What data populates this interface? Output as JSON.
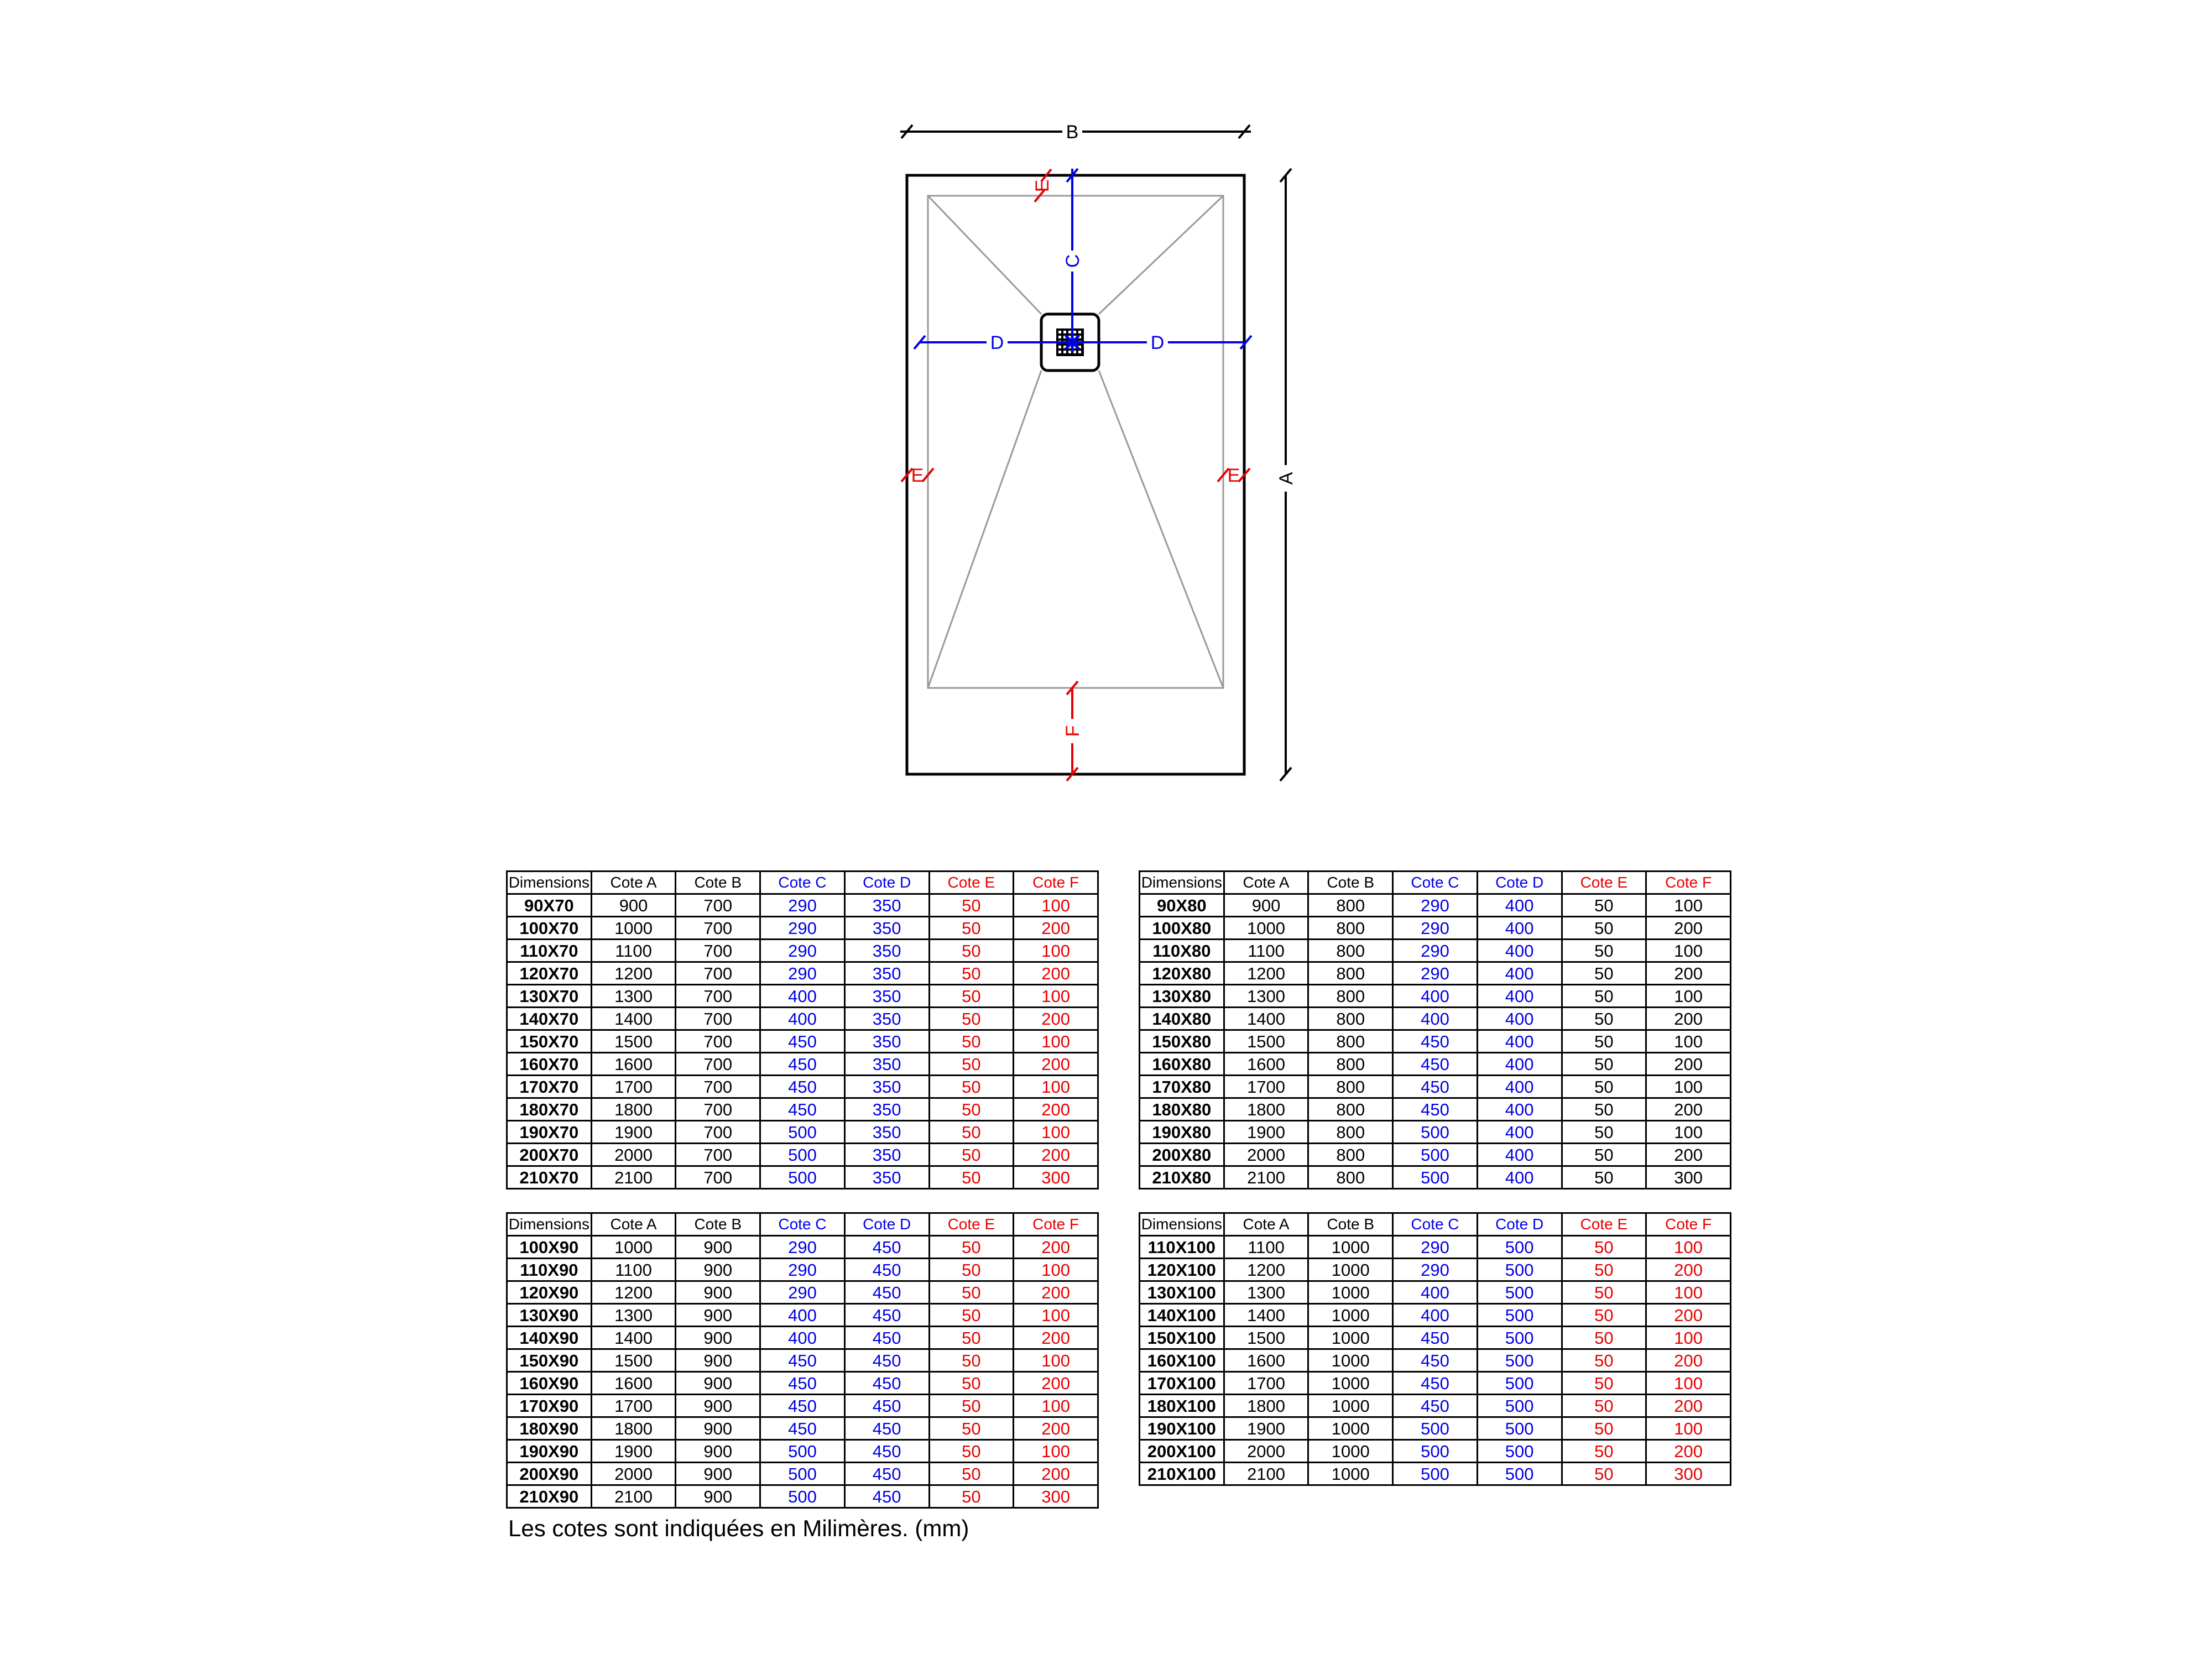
{
  "diagram": {
    "labels": {
      "a": "A",
      "b": "B",
      "c": "C",
      "d": "D",
      "e": "E",
      "f": "F"
    },
    "colors": {
      "dimension_cd": "#0000E6",
      "dimension_ef": "#E60000",
      "outline": "#000000",
      "slope_lines": "#999999"
    }
  },
  "columns": [
    "Dimensions",
    "Cote A",
    "Cote B",
    "Cote C",
    "Cote D",
    "Cote E",
    "Cote F"
  ],
  "column_header_colors": [
    "black",
    "black",
    "black",
    "blue",
    "blue",
    "red",
    "red"
  ],
  "tables": [
    {
      "series": "70",
      "ef_value_color": "red",
      "rows": [
        [
          "90X70",
          "900",
          "700",
          "290",
          "350",
          "50",
          "100"
        ],
        [
          "100X70",
          "1000",
          "700",
          "290",
          "350",
          "50",
          "200"
        ],
        [
          "110X70",
          "1100",
          "700",
          "290",
          "350",
          "50",
          "100"
        ],
        [
          "120X70",
          "1200",
          "700",
          "290",
          "350",
          "50",
          "200"
        ],
        [
          "130X70",
          "1300",
          "700",
          "400",
          "350",
          "50",
          "100"
        ],
        [
          "140X70",
          "1400",
          "700",
          "400",
          "350",
          "50",
          "200"
        ],
        [
          "150X70",
          "1500",
          "700",
          "450",
          "350",
          "50",
          "100"
        ],
        [
          "160X70",
          "1600",
          "700",
          "450",
          "350",
          "50",
          "200"
        ],
        [
          "170X70",
          "1700",
          "700",
          "450",
          "350",
          "50",
          "100"
        ],
        [
          "180X70",
          "1800",
          "700",
          "450",
          "350",
          "50",
          "200"
        ],
        [
          "190X70",
          "1900",
          "700",
          "500",
          "350",
          "50",
          "100"
        ],
        [
          "200X70",
          "2000",
          "700",
          "500",
          "350",
          "50",
          "200"
        ],
        [
          "210X70",
          "2100",
          "700",
          "500",
          "350",
          "50",
          "300"
        ]
      ]
    },
    {
      "series": "80",
      "ef_value_color": "black",
      "rows": [
        [
          "90X80",
          "900",
          "800",
          "290",
          "400",
          "50",
          "100"
        ],
        [
          "100X80",
          "1000",
          "800",
          "290",
          "400",
          "50",
          "200"
        ],
        [
          "110X80",
          "1100",
          "800",
          "290",
          "400",
          "50",
          "100"
        ],
        [
          "120X80",
          "1200",
          "800",
          "290",
          "400",
          "50",
          "200"
        ],
        [
          "130X80",
          "1300",
          "800",
          "400",
          "400",
          "50",
          "100"
        ],
        [
          "140X80",
          "1400",
          "800",
          "400",
          "400",
          "50",
          "200"
        ],
        [
          "150X80",
          "1500",
          "800",
          "450",
          "400",
          "50",
          "100"
        ],
        [
          "160X80",
          "1600",
          "800",
          "450",
          "400",
          "50",
          "200"
        ],
        [
          "170X80",
          "1700",
          "800",
          "450",
          "400",
          "50",
          "100"
        ],
        [
          "180X80",
          "1800",
          "800",
          "450",
          "400",
          "50",
          "200"
        ],
        [
          "190X80",
          "1900",
          "800",
          "500",
          "400",
          "50",
          "100"
        ],
        [
          "200X80",
          "2000",
          "800",
          "500",
          "400",
          "50",
          "200"
        ],
        [
          "210X80",
          "2100",
          "800",
          "500",
          "400",
          "50",
          "300"
        ]
      ]
    },
    {
      "series": "90",
      "ef_value_color": "red",
      "rows": [
        [
          "100X90",
          "1000",
          "900",
          "290",
          "450",
          "50",
          "200"
        ],
        [
          "110X90",
          "1100",
          "900",
          "290",
          "450",
          "50",
          "100"
        ],
        [
          "120X90",
          "1200",
          "900",
          "290",
          "450",
          "50",
          "200"
        ],
        [
          "130X90",
          "1300",
          "900",
          "400",
          "450",
          "50",
          "100"
        ],
        [
          "140X90",
          "1400",
          "900",
          "400",
          "450",
          "50",
          "200"
        ],
        [
          "150X90",
          "1500",
          "900",
          "450",
          "450",
          "50",
          "100"
        ],
        [
          "160X90",
          "1600",
          "900",
          "450",
          "450",
          "50",
          "200"
        ],
        [
          "170X90",
          "1700",
          "900",
          "450",
          "450",
          "50",
          "100"
        ],
        [
          "180X90",
          "1800",
          "900",
          "450",
          "450",
          "50",
          "200"
        ],
        [
          "190X90",
          "1900",
          "900",
          "500",
          "450",
          "50",
          "100"
        ],
        [
          "200X90",
          "2000",
          "900",
          "500",
          "450",
          "50",
          "200"
        ],
        [
          "210X90",
          "2100",
          "900",
          "500",
          "450",
          "50",
          "300"
        ]
      ]
    },
    {
      "series": "100",
      "ef_value_color": "red",
      "rows": [
        [
          "110X100",
          "1100",
          "1000",
          "290",
          "500",
          "50",
          "100"
        ],
        [
          "120X100",
          "1200",
          "1000",
          "290",
          "500",
          "50",
          "200"
        ],
        [
          "130X100",
          "1300",
          "1000",
          "400",
          "500",
          "50",
          "100"
        ],
        [
          "140X100",
          "1400",
          "1000",
          "400",
          "500",
          "50",
          "200"
        ],
        [
          "150X100",
          "1500",
          "1000",
          "450",
          "500",
          "50",
          "100"
        ],
        [
          "160X100",
          "1600",
          "1000",
          "450",
          "500",
          "50",
          "200"
        ],
        [
          "170X100",
          "1700",
          "1000",
          "450",
          "500",
          "50",
          "100"
        ],
        [
          "180X100",
          "1800",
          "1000",
          "450",
          "500",
          "50",
          "200"
        ],
        [
          "190X100",
          "1900",
          "1000",
          "500",
          "500",
          "50",
          "100"
        ],
        [
          "200X100",
          "2000",
          "1000",
          "500",
          "500",
          "50",
          "200"
        ],
        [
          "210X100",
          "2100",
          "1000",
          "500",
          "500",
          "50",
          "300"
        ]
      ]
    }
  ],
  "footer": {
    "note": "Les cotes sont indiquées en Milimères. (mm)"
  }
}
